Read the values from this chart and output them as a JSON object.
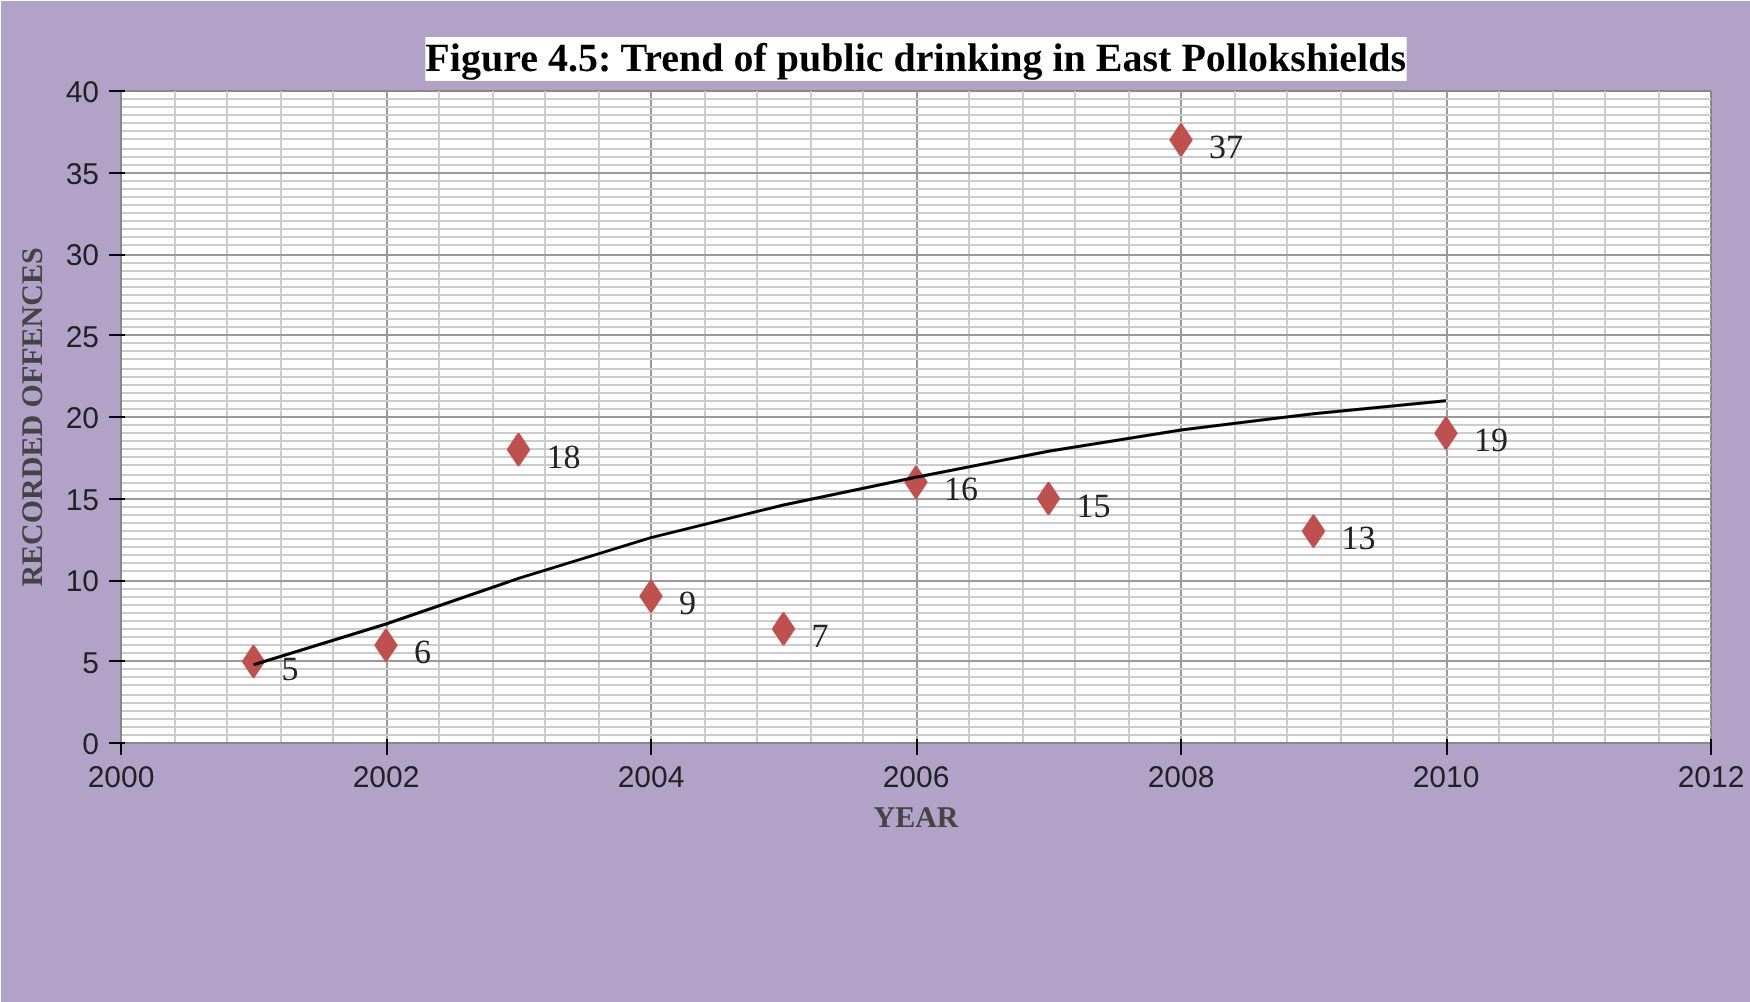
{
  "chart_data": {
    "type": "scatter",
    "title": "Figure 4.5: Trend of public drinking in East Pollokshields",
    "xlabel": "YEAR",
    "ylabel": "RECORDED OFFENCES",
    "x": [
      2001,
      2002,
      2003,
      2004,
      2005,
      2006,
      2007,
      2008,
      2009,
      2010
    ],
    "series": [
      {
        "color": "#c0504d",
        "values": [
          5,
          6,
          18,
          9,
          7,
          16,
          15,
          37,
          13,
          19
        ],
        "data_labels": true,
        "marker": "diamond"
      },
      {
        "type": "line",
        "color": "#000000",
        "x": [
          2001,
          2002,
          2003,
          2004,
          2005,
          2006,
          2007,
          2008,
          2009,
          2010
        ],
        "values": [
          4.8,
          7.3,
          10.1,
          12.6,
          14.6,
          16.3,
          17.9,
          19.2,
          20.2,
          21.0
        ],
        "marker": "none",
        "line_style": "solid"
      }
    ],
    "xlim": [
      2000,
      2012
    ],
    "xticks": [
      2000,
      2002,
      2004,
      2006,
      2008,
      2010,
      2012
    ],
    "ylim": [
      0,
      40
    ],
    "yticks": [
      0,
      5,
      10,
      15,
      20,
      25,
      30,
      35,
      40
    ],
    "grid": true
  }
}
